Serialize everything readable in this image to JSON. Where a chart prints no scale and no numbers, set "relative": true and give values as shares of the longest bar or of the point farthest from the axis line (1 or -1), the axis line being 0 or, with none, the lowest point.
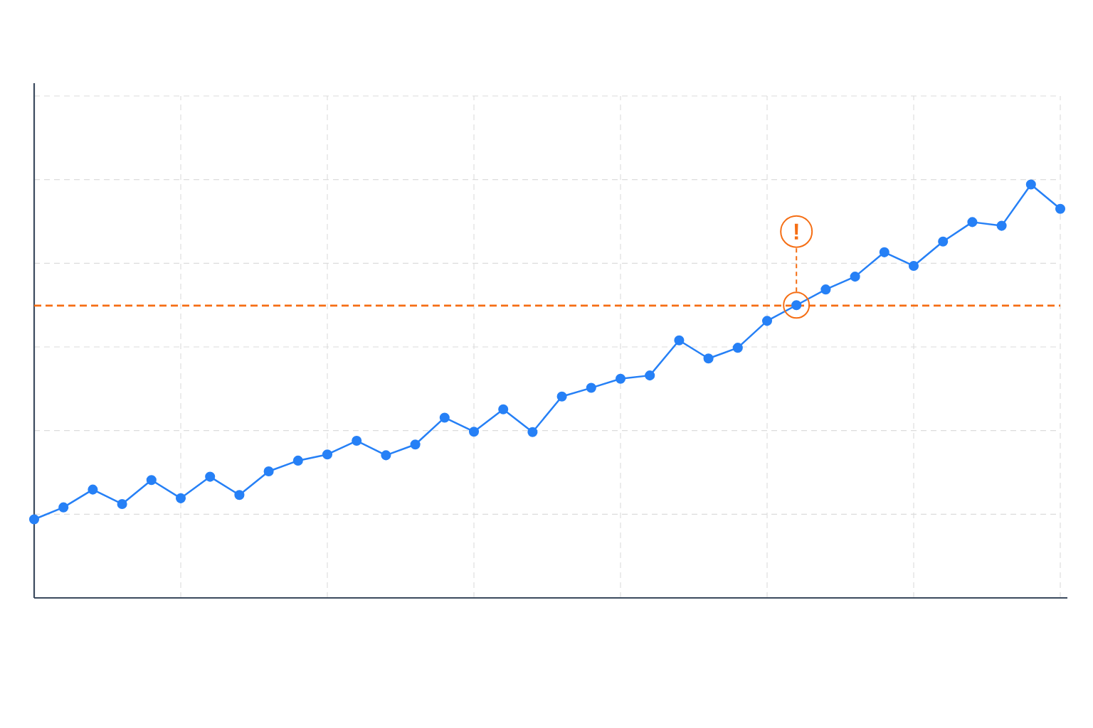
{
  "chart_data": {
    "type": "line",
    "relative": true,
    "categories": [
      null,
      null,
      null,
      null,
      null,
      null,
      null,
      null,
      null,
      null,
      null,
      null,
      null,
      null,
      null,
      null,
      null,
      null,
      null,
      null,
      null,
      null,
      null,
      null,
      null,
      null,
      null,
      null,
      null,
      null,
      null,
      null,
      null,
      null,
      null,
      null
    ],
    "series": [
      {
        "color": "#2680f6",
        "values": [
          0.19,
          0.219,
          0.262,
          0.227,
          0.285,
          0.241,
          0.293,
          0.249,
          0.306,
          0.332,
          0.347,
          0.38,
          0.345,
          0.371,
          0.436,
          0.402,
          0.456,
          0.401,
          0.487,
          0.508,
          0.53,
          0.538,
          0.623,
          0.579,
          0.605,
          0.67,
          0.708,
          0.746,
          0.777,
          0.836,
          0.803,
          0.862,
          0.909,
          0.9,
          1.0,
          0.941
        ]
      }
    ],
    "marker": "circle",
    "line_style": "solid",
    "grid": true,
    "ref_lines": [
      {
        "axis": "y",
        "value": 0.707,
        "color": "#f56e14",
        "line_style": "dashed"
      }
    ],
    "annotations": [
      {
        "text": "!",
        "y": 0.708
      }
    ]
  }
}
